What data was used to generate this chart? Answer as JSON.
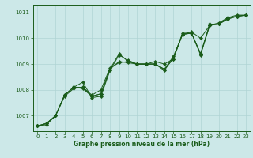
{
  "title": "",
  "xlabel": "Graphe pression niveau de la mer (hPa)",
  "ylabel": "",
  "bg_color": "#cce8e8",
  "grid_color": "#b0d4d4",
  "line_color": "#1a5c1a",
  "xlim": [
    -0.5,
    23.5
  ],
  "ylim": [
    1006.4,
    1011.3
  ],
  "yticks": [
    1007,
    1008,
    1009,
    1010,
    1011
  ],
  "xticks": [
    0,
    1,
    2,
    3,
    4,
    5,
    6,
    7,
    8,
    9,
    10,
    11,
    12,
    13,
    14,
    15,
    16,
    17,
    18,
    19,
    20,
    21,
    22,
    23
  ],
  "series": [
    [
      1006.6,
      1006.65,
      1007.0,
      1007.8,
      1008.1,
      1008.05,
      1007.75,
      1007.85,
      1008.8,
      1009.4,
      1009.1,
      1009.0,
      1009.0,
      1009.0,
      1008.8,
      1009.2,
      1010.2,
      1010.2,
      1009.4,
      1010.55,
      1010.55,
      1010.75,
      1010.85,
      1010.9
    ],
    [
      1006.6,
      1006.7,
      1007.0,
      1007.75,
      1008.05,
      1008.1,
      1007.8,
      1008.0,
      1008.85,
      1009.05,
      1009.1,
      1009.0,
      1009.0,
      1009.1,
      1009.0,
      1009.2,
      1010.15,
      1010.25,
      1010.0,
      1010.5,
      1010.6,
      1010.8,
      1010.9,
      1010.9
    ],
    [
      1006.6,
      1006.7,
      1007.0,
      1007.8,
      1008.1,
      1008.3,
      1007.7,
      1007.75,
      1008.75,
      1009.35,
      1009.15,
      1009.0,
      1009.0,
      1009.0,
      1008.75,
      1009.25,
      1010.15,
      1010.2,
      1009.35,
      1010.5,
      1010.55,
      1010.8,
      1010.85,
      1010.9
    ],
    [
      1006.6,
      1006.7,
      1007.0,
      1007.8,
      1008.1,
      1008.1,
      1007.75,
      1007.85,
      1008.8,
      1009.1,
      1009.05,
      1009.0,
      1009.0,
      1009.0,
      1008.8,
      1009.3,
      1010.15,
      1010.2,
      1009.4,
      1010.5,
      1010.55,
      1010.75,
      1010.85,
      1010.9
    ]
  ]
}
